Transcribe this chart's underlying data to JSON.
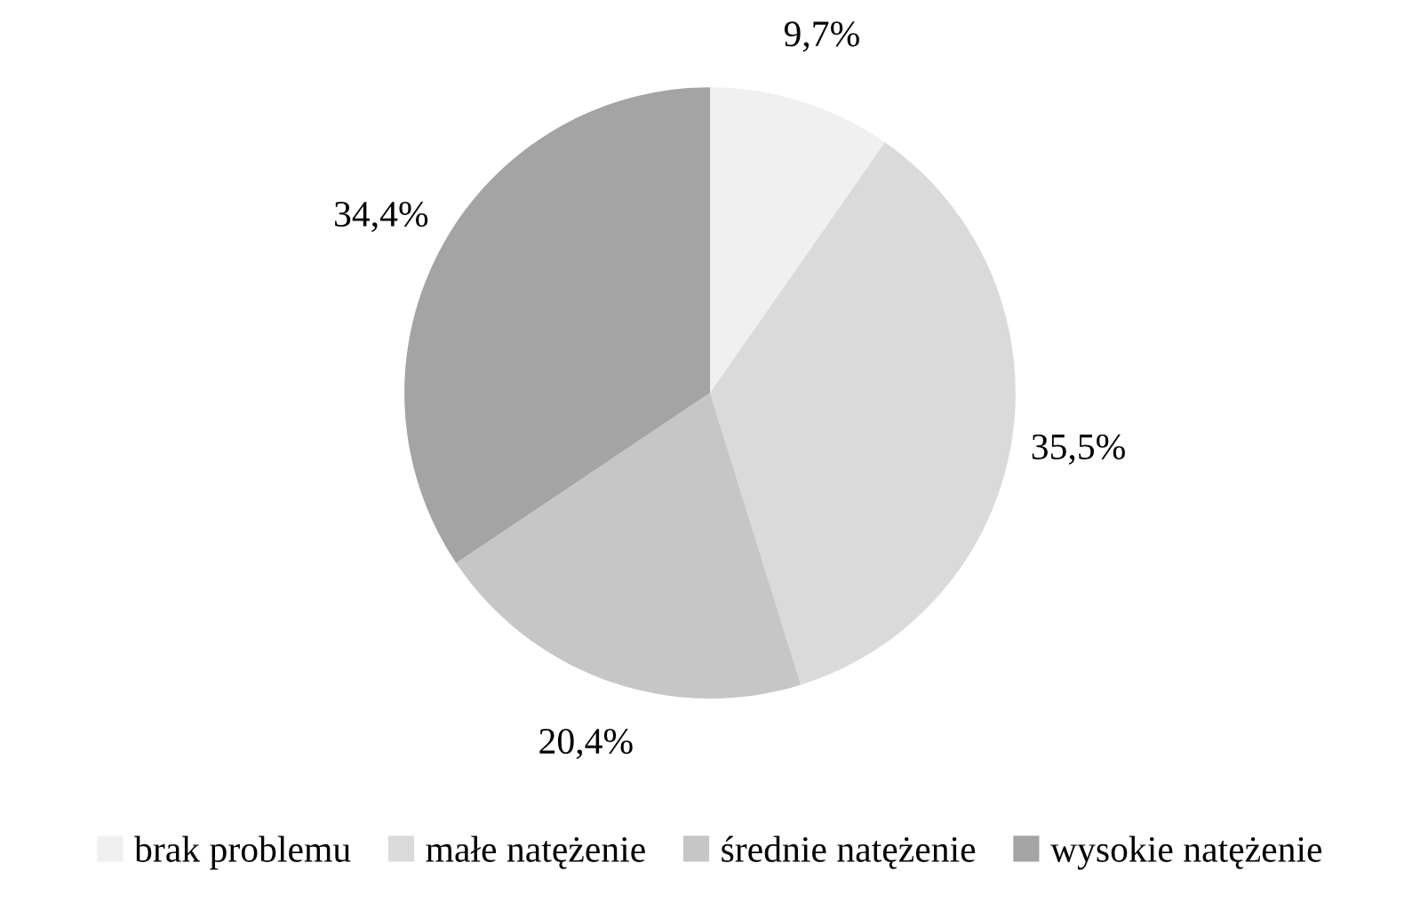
{
  "chart_data": {
    "type": "pie",
    "categories": [
      "brak problemu",
      "małe natężenie",
      "średnie natężenie",
      "wysokie natężenie"
    ],
    "values": [
      9.7,
      35.5,
      20.4,
      34.4
    ],
    "colors": [
      "#f0f0f0",
      "#dadada",
      "#c6c6c6",
      "#a4a4a4"
    ],
    "value_labels": [
      "9,7%",
      "35,5%",
      "20,4%",
      "34,4%"
    ],
    "legend": "bottom"
  }
}
